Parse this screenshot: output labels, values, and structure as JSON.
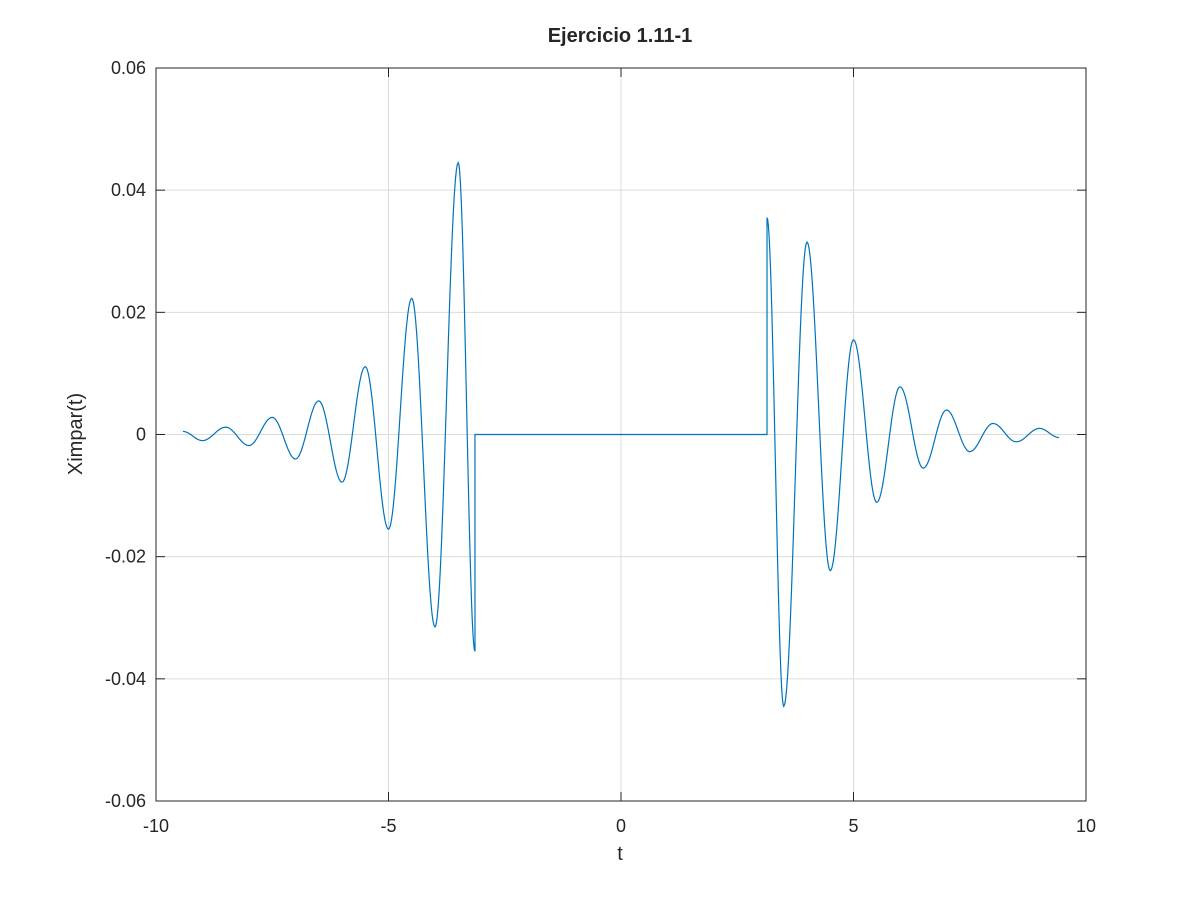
{
  "chart_data": {
    "type": "line",
    "title": "Ejercicio 1.11-1",
    "xlabel": "t",
    "ylabel": "Ximpar(t)",
    "xlim": [
      -10,
      10
    ],
    "ylim": [
      -0.06,
      0.06
    ],
    "xticks": [
      -10,
      -5,
      0,
      5,
      10
    ],
    "xtick_labels": [
      "-10",
      "-5",
      "0",
      "5",
      "10"
    ],
    "yticks": [
      -0.06,
      -0.04,
      -0.02,
      0,
      0.02,
      0.04,
      0.06
    ],
    "ytick_labels": [
      "-0.06",
      "-0.04",
      "-0.02",
      "0",
      "0.02",
      "0.04",
      "0.06"
    ],
    "grid": true,
    "legend": "none",
    "series": [
      {
        "color": "#0072bd",
        "x": [
          -9.42,
          -9.0,
          -8.5,
          -8.0,
          -7.5,
          -7.0,
          -6.5,
          -6.0,
          -5.5,
          -5.0,
          -4.5,
          -4.0,
          -3.5,
          -3.14,
          -3.14,
          3.14,
          3.14,
          3.5,
          4.0,
          4.5,
          5.0,
          5.5,
          6.0,
          6.5,
          7.0,
          7.5,
          8.0,
          8.5,
          9.0,
          9.42
        ],
        "y": [
          0.0005,
          -0.001,
          0.0012,
          -0.0018,
          0.0028,
          -0.004,
          0.0055,
          -0.0078,
          0.0111,
          -0.0155,
          0.0223,
          -0.0315,
          0.0445,
          -0.0355,
          0.0,
          0.0,
          0.0355,
          -0.0445,
          0.0315,
          -0.0223,
          0.0155,
          -0.0111,
          0.0078,
          -0.0055,
          0.004,
          -0.0028,
          0.0018,
          -0.0012,
          0.001,
          -0.0005
        ]
      }
    ]
  }
}
